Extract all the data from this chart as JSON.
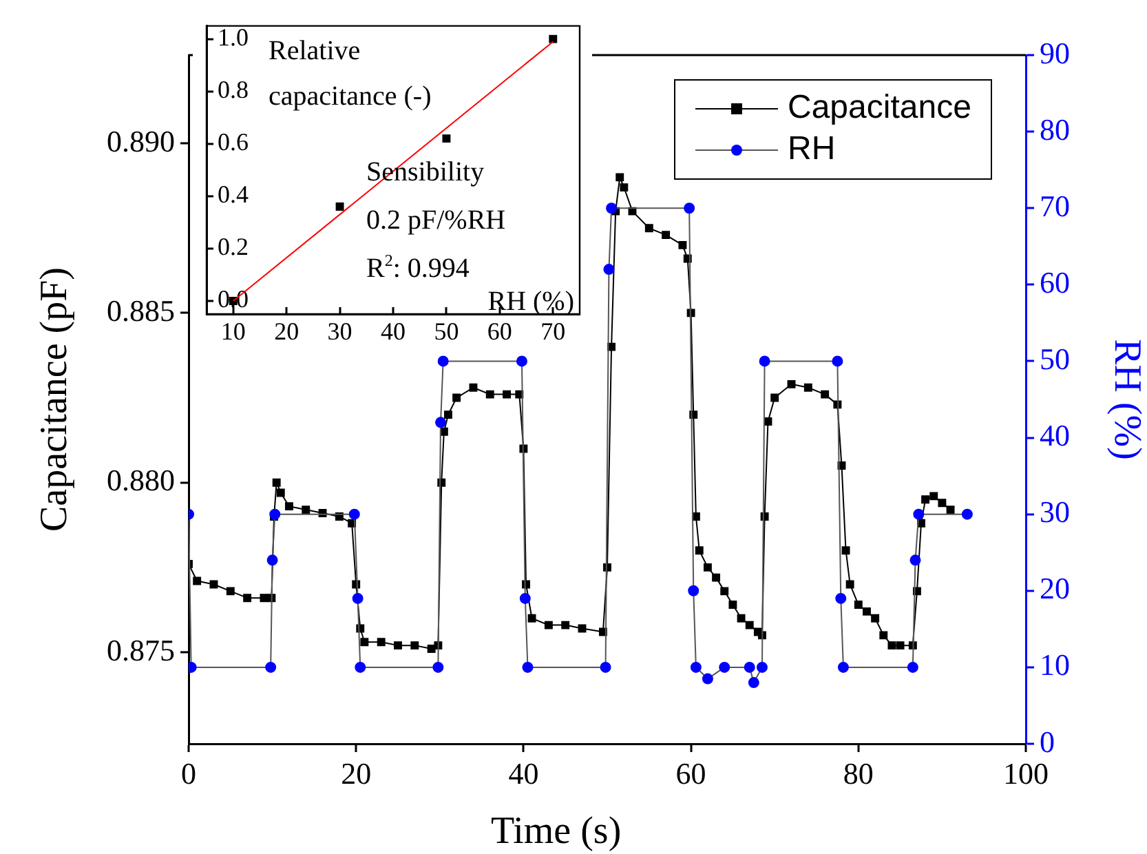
{
  "chart_data": [
    {
      "type": "line",
      "xlabel": "Time (s)",
      "ylabel": "Capacitance (pF)",
      "y2label": "RH (%)",
      "xlim": [
        0,
        100
      ],
      "xticks": [
        0,
        20,
        40,
        60,
        80,
        100
      ],
      "ylim": [
        0.8723,
        0.8926
      ],
      "yticks": [
        {
          "value": 0.875,
          "label": "0.875"
        },
        {
          "value": 0.88,
          "label": "0.880"
        },
        {
          "value": 0.885,
          "label": "0.885"
        },
        {
          "value": 0.89,
          "label": "0.890"
        }
      ],
      "y2lim": [
        0,
        90
      ],
      "y2ticks": [
        0,
        10,
        20,
        30,
        40,
        50,
        60,
        70,
        80,
        90
      ],
      "grid": false,
      "legend": "top right",
      "series": [
        {
          "name": "Capacitance",
          "color": "#000000",
          "marker": "square",
          "x": [
            0,
            1,
            3,
            5,
            7,
            9,
            9.9,
            10.2,
            10.5,
            11,
            12,
            14,
            16,
            18,
            19.5,
            20,
            20.5,
            21,
            23,
            25,
            27,
            29,
            29.8,
            30.2,
            30.5,
            31,
            32,
            34,
            36,
            38,
            39.5,
            40,
            40.3,
            41,
            43,
            45,
            47,
            49.5,
            50,
            50.5,
            51,
            51.5,
            52,
            53,
            55,
            57,
            59,
            59.6,
            60,
            60.3,
            60.6,
            61,
            62,
            63,
            64,
            65,
            66,
            67,
            68,
            68.5,
            68.8,
            69.2,
            70,
            72,
            74,
            76,
            77.5,
            78,
            78.5,
            79,
            80,
            81,
            82,
            83,
            84,
            85,
            86.5,
            87,
            87.5,
            88,
            89,
            90,
            91
          ],
          "values": [
            0.8776,
            0.8771,
            0.877,
            0.8768,
            0.8766,
            0.8766,
            0.8766,
            0.879,
            0.88,
            0.8797,
            0.8793,
            0.8792,
            0.8791,
            0.879,
            0.8788,
            0.877,
            0.8757,
            0.8753,
            0.8753,
            0.8752,
            0.8752,
            0.8751,
            0.8752,
            0.88,
            0.8815,
            0.882,
            0.8825,
            0.8828,
            0.8826,
            0.8826,
            0.8826,
            0.881,
            0.877,
            0.876,
            0.8758,
            0.8758,
            0.8757,
            0.8756,
            0.8775,
            0.884,
            0.888,
            0.889,
            0.8887,
            0.888,
            0.8875,
            0.8873,
            0.887,
            0.8866,
            0.885,
            0.882,
            0.879,
            0.878,
            0.8775,
            0.8772,
            0.8768,
            0.8764,
            0.876,
            0.8758,
            0.8756,
            0.8755,
            0.879,
            0.8818,
            0.8825,
            0.8829,
            0.8828,
            0.8826,
            0.8823,
            0.8805,
            0.878,
            0.877,
            0.8764,
            0.8762,
            0.876,
            0.8755,
            0.8752,
            0.8752,
            0.8752,
            0.8768,
            0.8788,
            0.8795,
            0.8796,
            0.8794,
            0.8792
          ]
        },
        {
          "name": "RH",
          "color": "#0000ff",
          "marker": "circle",
          "axis": "y2",
          "x": [
            0,
            0.3,
            9.8,
            10,
            10.3,
            19.8,
            20.2,
            20.5,
            29.8,
            30.1,
            30.4,
            39.8,
            40.2,
            40.5,
            49.8,
            50.2,
            50.5,
            59.8,
            60.3,
            60.6,
            62,
            64,
            67,
            67.5,
            68.5,
            68.8,
            77.5,
            77.9,
            78.2,
            86.5,
            86.8,
            87.2,
            93
          ],
          "values": [
            30,
            10,
            10,
            24,
            30,
            30,
            19,
            10,
            10,
            42,
            50,
            50,
            19,
            10,
            10,
            62,
            70,
            70,
            20,
            10,
            8.5,
            10,
            10,
            8,
            10,
            50,
            50,
            19,
            10,
            10,
            24,
            30,
            30
          ]
        }
      ]
    },
    {
      "type": "scatter",
      "xlabel": "RH (%)",
      "ylabel": "Relative capacitance (-)",
      "xlim": [
        5,
        75
      ],
      "xticks": [
        10,
        20,
        30,
        40,
        50,
        60,
        70
      ],
      "ylim": [
        -0.05,
        1.05
      ],
      "yticks": [
        {
          "value": 0,
          "label": "0.0"
        },
        {
          "value": 0.2,
          "label": "0.2"
        },
        {
          "value": 0.4,
          "label": "0.4"
        },
        {
          "value": 0.6,
          "label": "0.6"
        },
        {
          "value": 0.8,
          "label": "0.8"
        },
        {
          "value": 1,
          "label": "1.0"
        }
      ],
      "grid": false,
      "annotations": [
        "Sensibility",
        "0.2 pF/%RH",
        "R$^{2}$: 0.994"
      ],
      "series": [
        {
          "color": "#000000",
          "marker": "square",
          "x": [
            10,
            30,
            50,
            70
          ],
          "values": [
            0,
            0.36,
            0.62,
            1.0
          ]
        },
        {
          "type": "line",
          "color": "#ff0000",
          "marker": "none",
          "x": [
            10,
            70
          ],
          "values": [
            0,
            0.99
          ]
        }
      ]
    }
  ]
}
